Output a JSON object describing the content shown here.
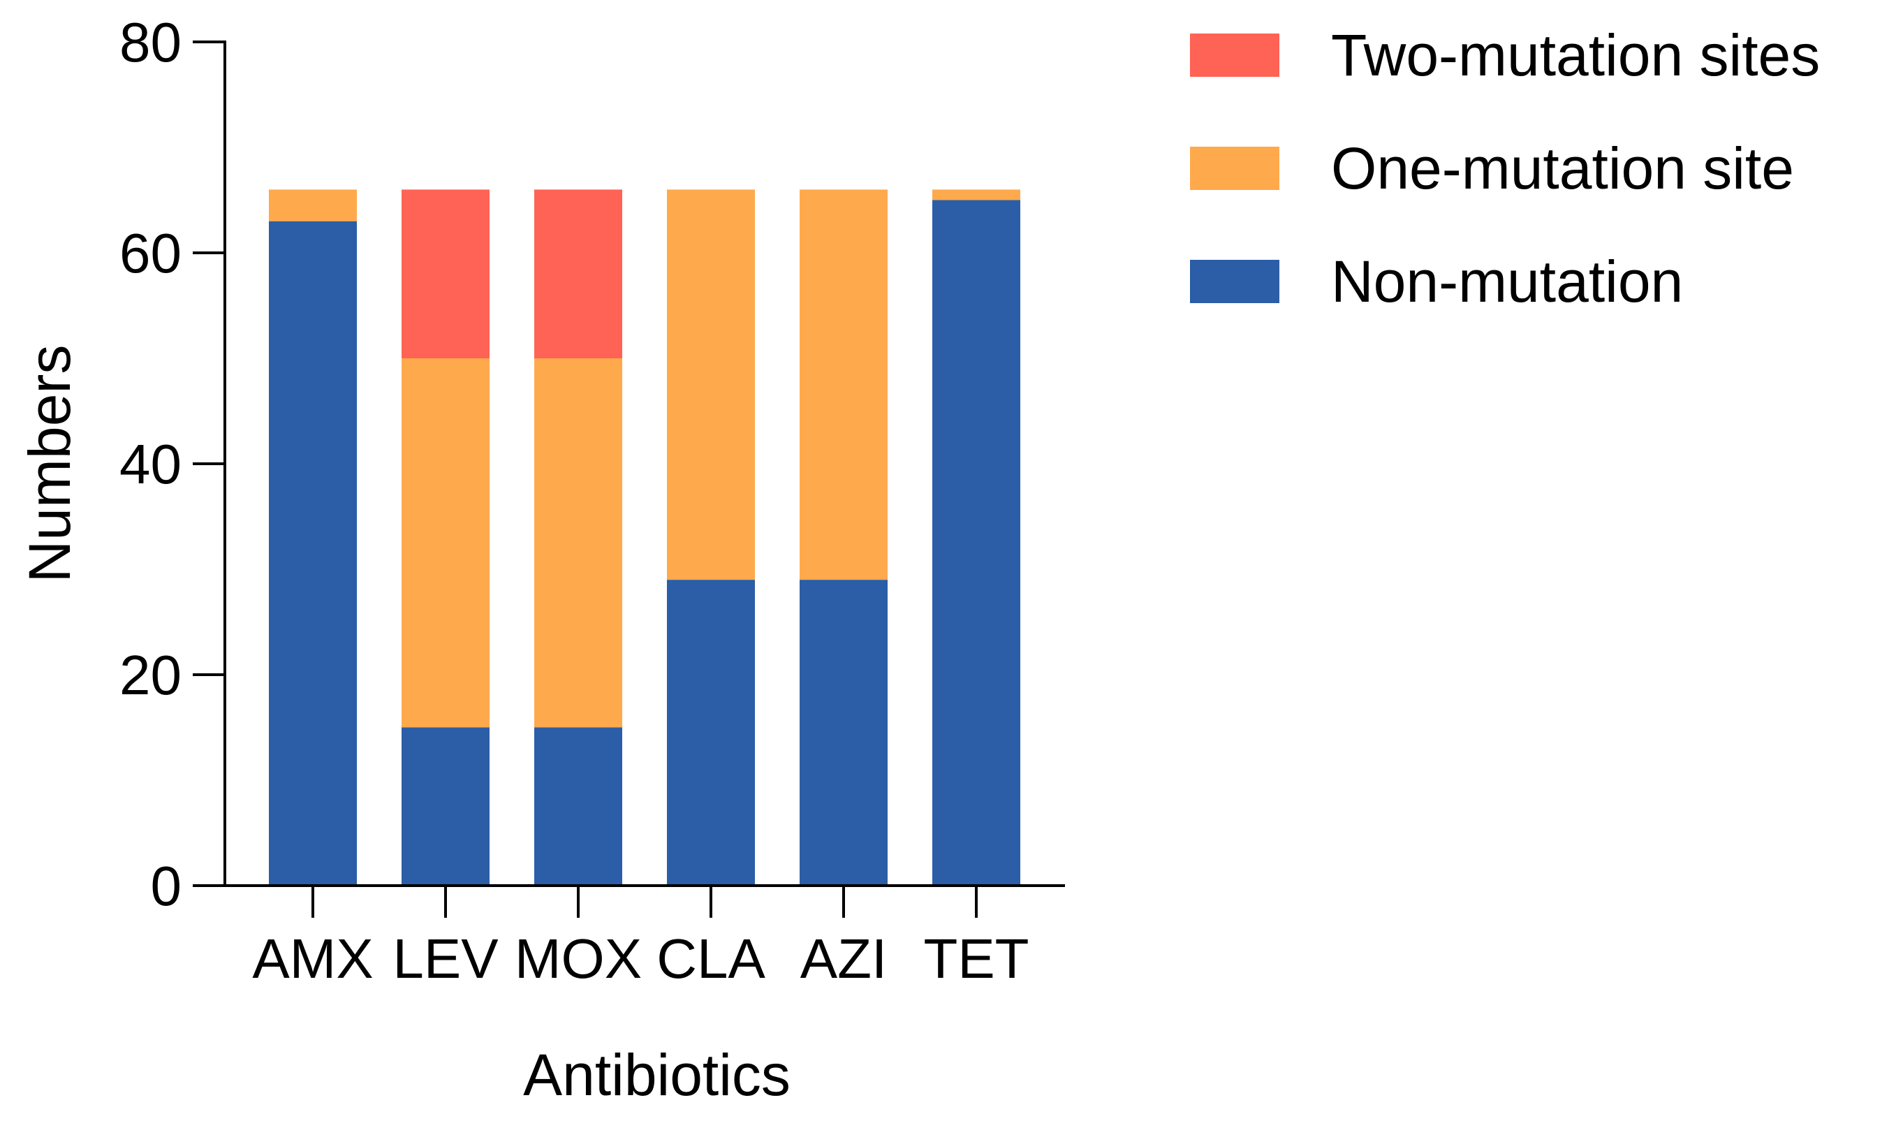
{
  "chart_data": {
    "type": "bar",
    "stacked": true,
    "title": "",
    "xlabel": "Antibiotics",
    "ylabel": "Numbers",
    "ylim": [
      0,
      80
    ],
    "yticks": [
      0,
      20,
      40,
      60,
      80
    ],
    "grid": false,
    "legend_position": "top-right",
    "categories": [
      "AMX",
      "LEV",
      "MOX",
      "CLA",
      "AZI",
      "TET"
    ],
    "series": [
      {
        "name": "Non-mutation",
        "color": "#2b5ea6",
        "values": [
          63,
          15,
          15,
          29,
          29,
          65
        ]
      },
      {
        "name": "One-mutation site",
        "color": "#ffa94d",
        "values": [
          3,
          35,
          35,
          37,
          37,
          1
        ]
      },
      {
        "name": "Two-mutation sites",
        "color": "#ff6355",
        "values": [
          0,
          16,
          16,
          0,
          0,
          0
        ]
      }
    ],
    "legend_order": [
      "Two-mutation sites",
      "One-mutation site",
      "Non-mutation"
    ]
  }
}
